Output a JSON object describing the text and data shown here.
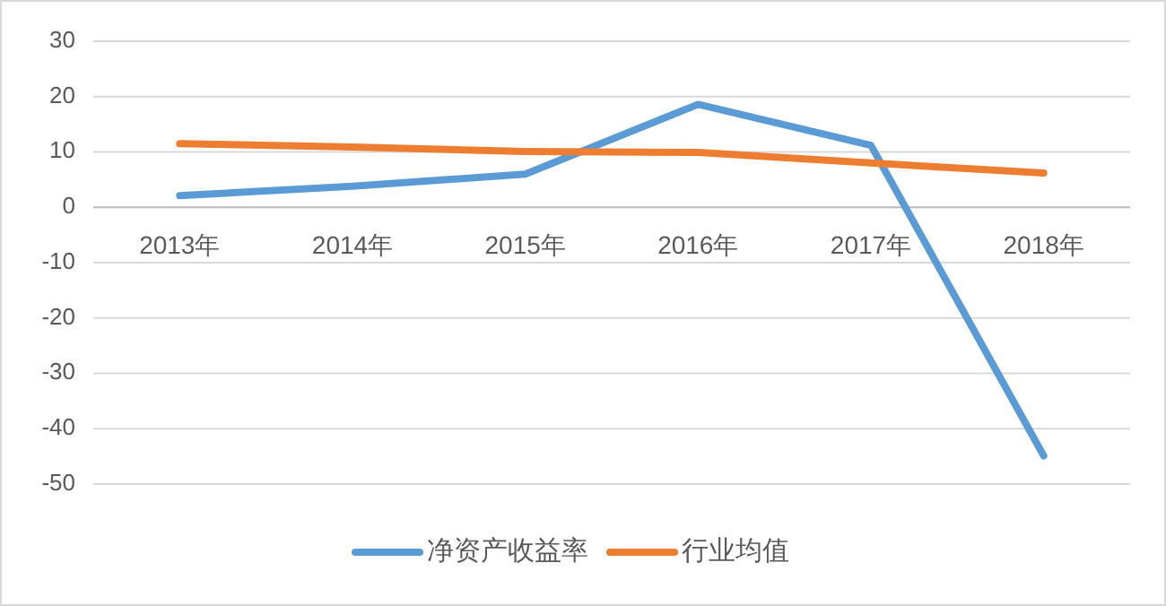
{
  "chart_data": {
    "type": "line",
    "categories": [
      "2013年",
      "2014年",
      "2015年",
      "2016年",
      "2017年",
      "2018年"
    ],
    "series": [
      {
        "name": "净资产收益率",
        "color": "#5b9bd5",
        "values": [
          2.1,
          3.8,
          6,
          18.6,
          11.2,
          -44.9
        ]
      },
      {
        "name": "行业均值",
        "color": "#ed7d31",
        "values": [
          11.5,
          10.9,
          10.1,
          9.9,
          8,
          6.2
        ]
      }
    ],
    "ylim": [
      -50,
      30
    ],
    "yticks": [
      -50,
      -40,
      -30,
      -20,
      -10,
      0,
      10,
      20,
      30
    ],
    "grid": "y",
    "legend": "bottom"
  }
}
